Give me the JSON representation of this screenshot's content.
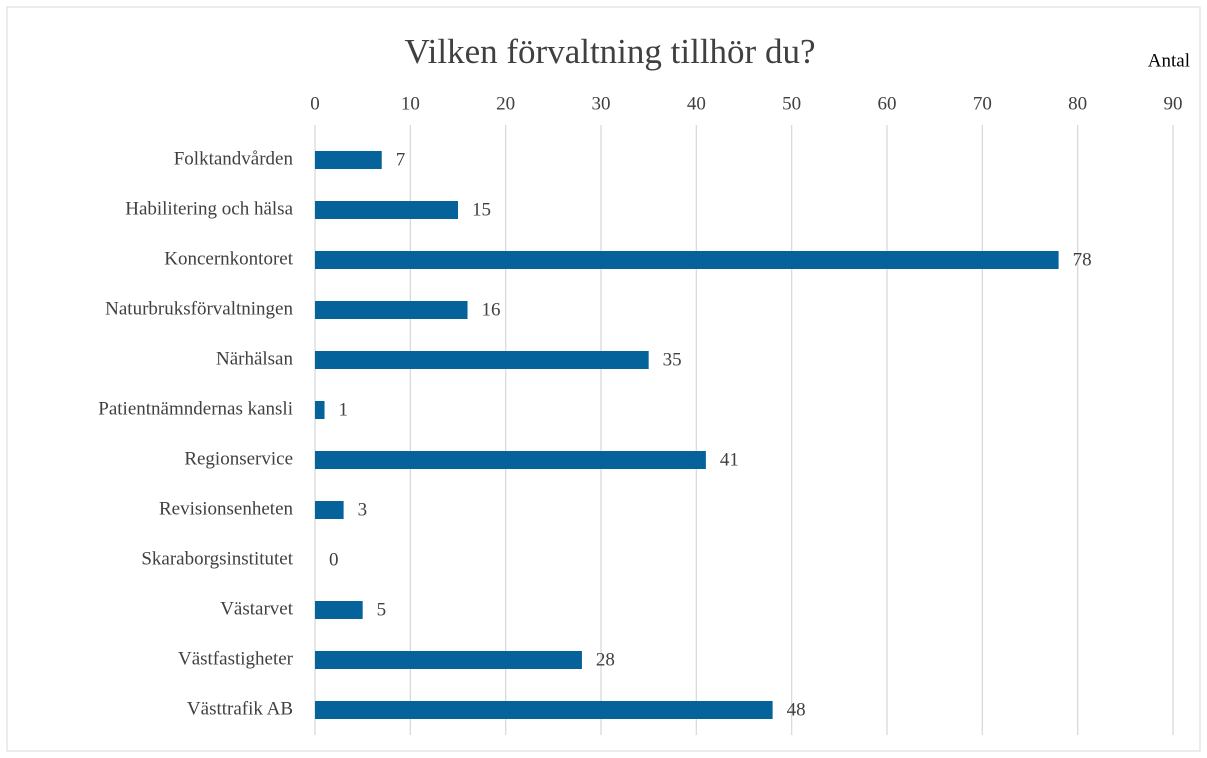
{
  "chart_data": {
    "type": "bar",
    "orientation": "horizontal",
    "title": "Vilken förvaltning tillhör du?",
    "x_axis_label": "Antal",
    "categories": [
      "Folktandvården",
      "Habilitering och hälsa",
      "Koncernkontoret",
      "Naturbruksförvaltningen",
      "Närhälsan",
      "Patientnämndernas kansli",
      "Regionservice",
      "Revisionsenheten",
      "Skaraborgsinstitutet",
      "Västarvet",
      "Västfastigheter",
      "Västtrafik AB"
    ],
    "values": [
      7,
      15,
      78,
      16,
      35,
      1,
      41,
      3,
      0,
      5,
      28,
      48
    ],
    "color": "#05629a",
    "xlim": [
      0,
      90
    ],
    "xticks": [
      0,
      10,
      20,
      30,
      40,
      50,
      60,
      70,
      80,
      90
    ],
    "grid": true
  }
}
